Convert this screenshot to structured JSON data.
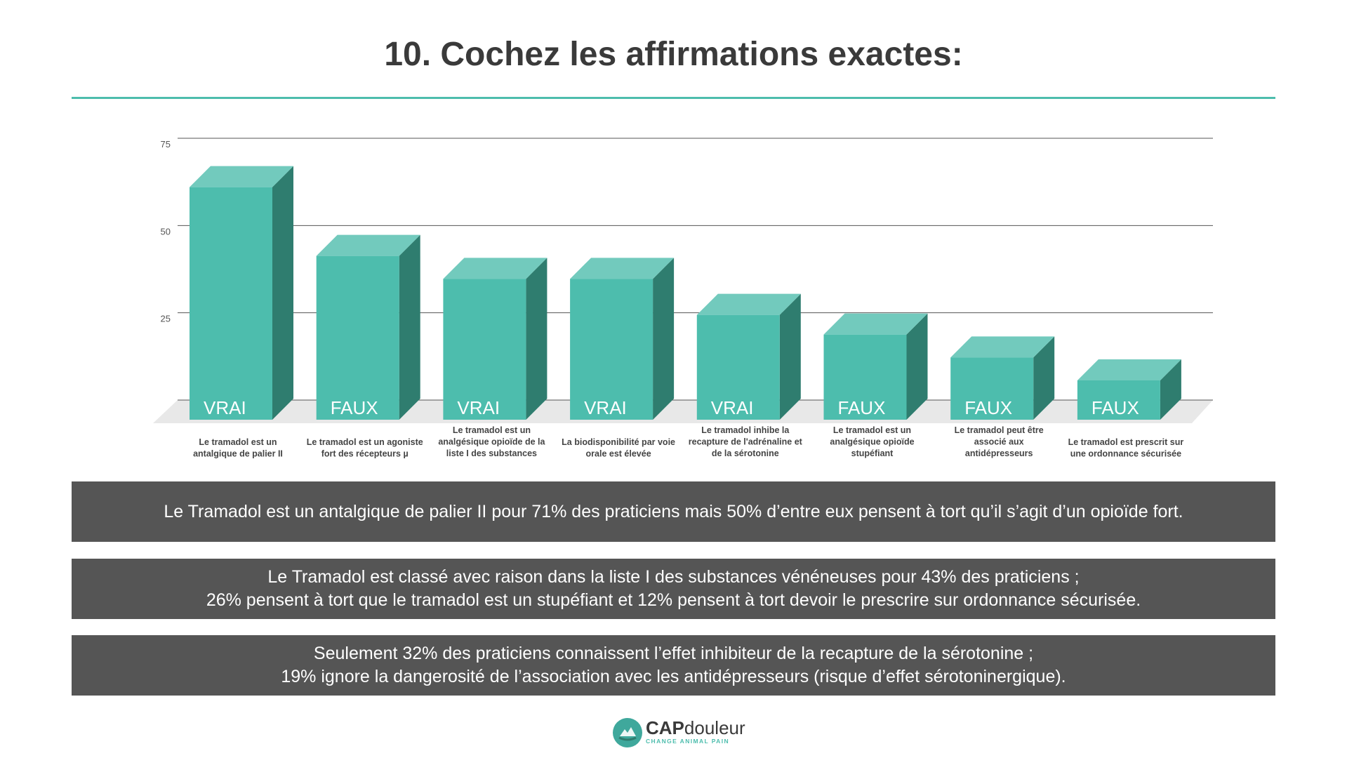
{
  "title": "10. Cochez les affirmations exactes:",
  "chart_data": {
    "type": "bar",
    "ylim": [
      0,
      75
    ],
    "yticks": [
      "75",
      "50",
      "25"
    ],
    "grid": true,
    "categories": [
      [
        "Le tramadol est un",
        "antalgique de palier II"
      ],
      [
        "Le tramadol est un agoniste",
        "fort des récepteurs µ"
      ],
      [
        "Le tramadol est un",
        "analgésique opioïde de la",
        "liste I des substances"
      ],
      [
        "La biodisponibilité par voie",
        "orale est élevée"
      ],
      [
        "Le tramadol inhibe la",
        "recapture de l'adrénaline et",
        "de la sérotonine"
      ],
      [
        "Le tramadol est un",
        "analgésique opioïde",
        "stupéfiant"
      ],
      [
        "Le tramadol peut être",
        "associé aux",
        "antidépresseurs"
      ],
      [
        "Le tramadol est prescrit sur",
        "une ordonnance sécurisée"
      ]
    ],
    "values": [
      71,
      50,
      43,
      43,
      32,
      26,
      19,
      12
    ],
    "bar_labels": [
      "VRAI",
      "FAUX",
      "VRAI",
      "VRAI",
      "VRAI",
      "FAUX",
      "FAUX",
      "FAUX"
    ],
    "colors": {
      "front": "#4dbdad",
      "top": "#72cabd",
      "side": "#2f7d6f",
      "floor": "#e8e8e8",
      "grid": "#555555"
    }
  },
  "banners": [
    [
      "Le Tramadol est un antalgique de palier II pour 71% des praticiens mais 50% d’entre eux  pensent à tort qu’il s’agit d’un opioïde fort."
    ],
    [
      "Le Tramadol est classé avec raison dans la liste I des substances vénéneuses pour 43% des praticiens ;",
      "26% pensent à tort que le tramadol est un stupéfiant et 12% pensent à tort devoir le prescrire  sur ordonnance sécurisée."
    ],
    [
      "Seulement 32% des praticiens connaissent l’effet inhibiteur de la recapture de la sérotonine ;",
      "19% ignore la dangerosité de l’association avec les antidépresseurs (risque d’effet sérotoninergique)."
    ]
  ],
  "logo": {
    "name_bold": "CAP",
    "name_light": "douleur",
    "tagline": "CHANGE ANIMAL PAIN",
    "icon": "cap-douleur-logo-icon",
    "colors": {
      "circle": "#3fa89c",
      "text": "#3a3a3a",
      "tagline": "#4dbdad"
    }
  }
}
